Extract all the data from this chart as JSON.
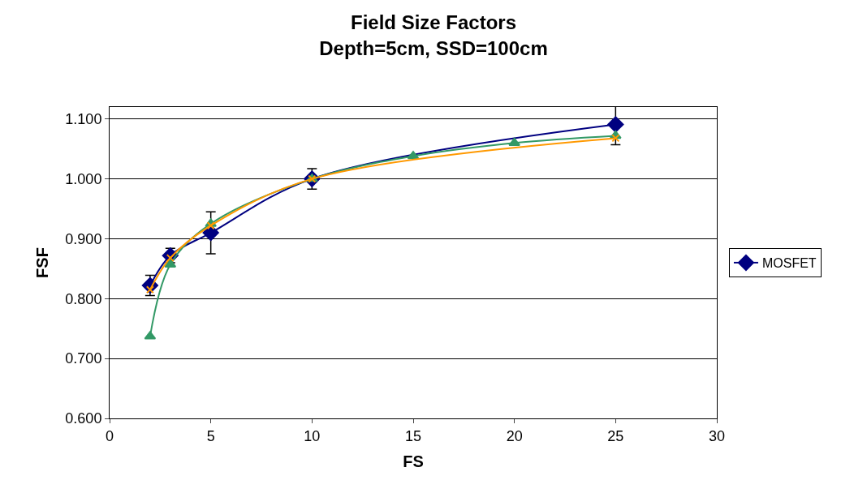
{
  "chart_data": {
    "type": "line",
    "title": "Field Size Factors\nDepth=5cm, SSD=100cm",
    "xlabel": "FS",
    "ylabel": "FSF",
    "xlim": [
      0,
      30
    ],
    "xticks": [
      0,
      5,
      10,
      15,
      20,
      25,
      30
    ],
    "ylim": [
      0.6,
      1.12
    ],
    "yticks": [
      {
        "value": 0.6,
        "label": "0.600"
      },
      {
        "value": 0.7,
        "label": "0.700"
      },
      {
        "value": 0.8,
        "label": "0.800"
      },
      {
        "value": 0.9,
        "label": "0.900"
      },
      {
        "value": 1.0,
        "label": "1.000"
      },
      {
        "value": 1.1,
        "label": "1.100"
      }
    ],
    "grid": "y",
    "legend": "right",
    "line_style": "solid",
    "series": [
      {
        "name": "MOSFET",
        "color": "#000080",
        "marker": "diamond",
        "x": [
          2,
          3,
          5,
          10,
          25
        ],
        "values": [
          0.822,
          0.872,
          0.91,
          1.0,
          1.091
        ],
        "errors": [
          0.017,
          0.012,
          0.035,
          0.017,
          0.034
        ]
      },
      {
        "color": "#339966",
        "marker": "triangle",
        "x": [
          2,
          3,
          5,
          10,
          15,
          20,
          25
        ],
        "values": [
          0.737,
          0.857,
          0.925,
          1.0,
          1.038,
          1.06,
          1.072
        ]
      },
      {
        "color": "#ff9900",
        "marker": "cross",
        "x": [
          2,
          3,
          5,
          10,
          25
        ],
        "values": [
          0.815,
          0.868,
          0.922,
          1.0,
          1.068
        ]
      }
    ]
  }
}
